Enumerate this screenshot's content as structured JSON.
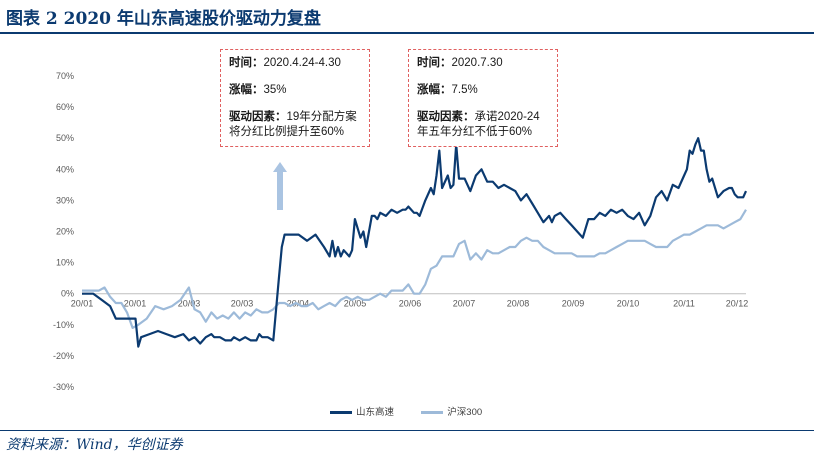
{
  "page": {
    "title": "图表 2  2020 年山东高速股价驱动力复盘",
    "source": "资料来源：Wind，华创证券"
  },
  "annotations": [
    {
      "time_label": "时间：",
      "time_value": "2020.4.24-4.30",
      "change_label": "涨幅：",
      "change_value": "35%",
      "driver_label": "驱动因素：",
      "driver_value": "19年分配方案将分红比例提升至60%"
    },
    {
      "time_label": "时间：",
      "time_value": "2020.7.30",
      "change_label": "涨幅：",
      "change_value": "7.5%",
      "driver_label": "驱动因素：",
      "driver_value": "承诺2020-24年五年分红不低于60%"
    }
  ],
  "chart_data": {
    "type": "line",
    "title": "",
    "xlabel": "",
    "ylabel": "",
    "ylim": [
      -30,
      70
    ],
    "yticks": [
      "70%",
      "60%",
      "50%",
      "40%",
      "30%",
      "20%",
      "10%",
      "0%",
      "-10%",
      "-20%",
      "-30%"
    ],
    "xticks": [
      "20/01",
      "20/01",
      "20/03",
      "20/03",
      "20/04",
      "20/05",
      "20/06",
      "20/07",
      "20/08",
      "20/09",
      "20/10",
      "20/11",
      "20/12"
    ],
    "grid": false,
    "legend_position": "bottom",
    "colors": {
      "shandong": "#0b3a70",
      "hs300": "#9dbad9",
      "arrow": "#aac4e2"
    },
    "series": [
      {
        "name": "山东高速",
        "x": [
          0,
          4,
          7,
          10,
          12,
          15,
          19,
          20,
          21,
          24,
          27,
          30,
          33,
          36,
          38,
          40,
          42,
          44,
          46,
          47,
          49,
          51,
          53,
          54,
          56,
          58,
          60,
          62,
          63,
          64,
          65,
          66,
          68,
          69,
          70,
          71,
          72,
          75,
          77,
          80,
          83,
          86,
          88,
          89,
          90,
          91,
          92,
          93,
          95,
          96,
          97,
          98,
          99,
          100,
          101,
          102,
          103,
          104,
          105,
          106,
          108,
          110,
          112,
          114,
          115,
          116,
          118,
          119,
          120,
          122,
          124,
          125,
          126,
          127,
          128,
          130,
          131,
          132,
          133,
          134,
          136,
          138,
          140,
          142,
          144,
          146,
          148,
          150,
          152,
          154,
          156,
          158,
          160,
          162,
          164,
          166,
          167,
          168,
          170,
          172,
          174,
          176,
          178,
          180,
          182,
          184,
          186,
          188,
          190,
          192,
          194,
          196,
          198,
          200,
          202,
          204,
          206,
          208,
          210,
          212,
          214,
          215,
          216,
          217,
          218,
          219,
          220,
          221,
          222,
          223,
          224,
          226,
          228,
          230,
          231,
          232,
          233,
          234,
          235,
          236
        ],
        "values": [
          0,
          0,
          -2,
          -4,
          -8,
          -8,
          -8,
          -17,
          -14,
          -13,
          -12,
          -13,
          -14,
          -13,
          -15,
          -14,
          -16,
          -14,
          -13,
          -14,
          -14,
          -15,
          -15,
          -14,
          -15,
          -14,
          -15,
          -15,
          -13,
          -14,
          -14,
          -14,
          -15,
          -5,
          5,
          15,
          19,
          19,
          19,
          17,
          19,
          15,
          12,
          17,
          12,
          15,
          12,
          14,
          12,
          14,
          24,
          21,
          18,
          20,
          15,
          20,
          25,
          25,
          24,
          26,
          25,
          27,
          26,
          27,
          27,
          28,
          26,
          26,
          25,
          30,
          34,
          32,
          38,
          46,
          34,
          38,
          34,
          35,
          48,
          37,
          37,
          33,
          38,
          40,
          36,
          36,
          34,
          35,
          34,
          33,
          30,
          32,
          29,
          26,
          23,
          25,
          23,
          25,
          26,
          24,
          22,
          20,
          18,
          24,
          24,
          26,
          25,
          27,
          26,
          27,
          25,
          24,
          26,
          22,
          25,
          31,
          33,
          30,
          35,
          34,
          38,
          40,
          46,
          45,
          48,
          50,
          46,
          46,
          40,
          36,
          37,
          31,
          33,
          34,
          34,
          32,
          31,
          31,
          31,
          33
        ]
      },
      {
        "name": "沪深300",
        "x": [
          0,
          6,
          8,
          10,
          12,
          14,
          16,
          18,
          20,
          23,
          26,
          29,
          32,
          35,
          38,
          40,
          42,
          44,
          46,
          48,
          50,
          52,
          54,
          56,
          58,
          60,
          62,
          64,
          66,
          68,
          70,
          72,
          74,
          76,
          78,
          80,
          82,
          84,
          86,
          88,
          90,
          92,
          94,
          96,
          98,
          100,
          102,
          104,
          106,
          108,
          110,
          112,
          114,
          116,
          118,
          120,
          122,
          124,
          126,
          128,
          130,
          132,
          134,
          136,
          138,
          140,
          142,
          144,
          146,
          148,
          150,
          152,
          154,
          156,
          158,
          160,
          162,
          164,
          166,
          168,
          170,
          172,
          174,
          176,
          178,
          180,
          182,
          184,
          186,
          188,
          190,
          192,
          194,
          196,
          198,
          200,
          202,
          204,
          206,
          208,
          210,
          212,
          214,
          216,
          218,
          220,
          222,
          224,
          226,
          228,
          230,
          232,
          234,
          236
        ],
        "values": [
          1,
          1,
          2,
          -1,
          -3,
          -3,
          -6,
          -11,
          -10,
          -8,
          -4,
          -5,
          -4,
          -2,
          2,
          -5,
          -6,
          -9,
          -6,
          -8,
          -7,
          -8,
          -6,
          -8,
          -6,
          -7,
          -5,
          -6,
          -6,
          -5,
          -3,
          -3,
          -4,
          -3,
          -4,
          -4,
          -3,
          -5,
          -4,
          -3,
          -4,
          -2,
          -1,
          -2,
          -1,
          -2,
          -2,
          -1,
          0,
          -1,
          1,
          1,
          1,
          3,
          0,
          0,
          3,
          8,
          9,
          12,
          12,
          12,
          16,
          17,
          11,
          13,
          11,
          14,
          13,
          13,
          14,
          15,
          15,
          17,
          18,
          17,
          17,
          15,
          14,
          13,
          13,
          13,
          13,
          12,
          12,
          12,
          12,
          13,
          13,
          14,
          15,
          16,
          17,
          17,
          17,
          17,
          16,
          15,
          15,
          15,
          17,
          18,
          19,
          19,
          20,
          21,
          22,
          22,
          22,
          21,
          22,
          23,
          24,
          27
        ]
      }
    ]
  }
}
